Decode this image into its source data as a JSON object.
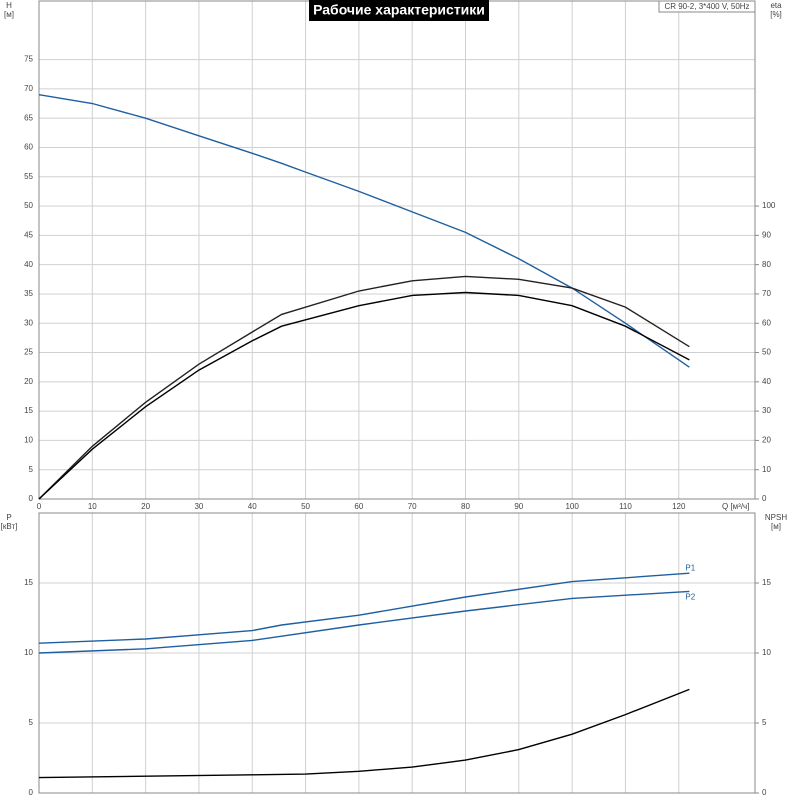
{
  "chart_data": [
    {
      "type": "line",
      "title": "Рабочие характеристики",
      "model": "CR 90-2, 3*400 V, 50Hz",
      "y_label": "H",
      "y_unit": "[м]",
      "y2_label": "eta",
      "y2_unit": "[%]",
      "x_label": "Q [м³/ч]",
      "xlim": [
        0,
        134.3
      ],
      "xticks": [
        0,
        10,
        20,
        30,
        40,
        50,
        60,
        70,
        80,
        90,
        100,
        110,
        120
      ],
      "ylim": [
        0,
        85
      ],
      "yticks": [
        0,
        5,
        10,
        15,
        20,
        25,
        30,
        35,
        40,
        45,
        50,
        55,
        60,
        65,
        70,
        75
      ],
      "y2lim": [
        0,
        170
      ],
      "y2ticks": [
        0,
        10,
        20,
        30,
        40,
        50,
        60,
        70,
        80,
        90,
        100
      ],
      "grid": true,
      "series": [
        {
          "color": "#1f5fa0",
          "x": [
            0,
            10,
            20,
            30,
            40,
            45.5,
            50,
            60,
            70,
            80,
            90,
            100,
            110,
            122
          ],
          "values": [
            69,
            67.5,
            65,
            62,
            59,
            57.3,
            55.8,
            52.5,
            49,
            45.5,
            41,
            36,
            30,
            22.5
          ]
        },
        {
          "color": "#222222",
          "axis": "y2",
          "x": [
            0,
            10,
            20,
            30,
            40,
            45.5,
            60,
            70,
            80,
            90,
            100,
            110,
            122
          ],
          "values": [
            0,
            18,
            33,
            46,
            57,
            63,
            71,
            74.5,
            76,
            75,
            72,
            65.5,
            52
          ]
        },
        {
          "color": "#000000",
          "axis": "y2",
          "x": [
            0,
            10,
            20,
            30,
            40,
            45.5,
            60,
            70,
            80,
            90,
            100,
            110,
            122
          ],
          "values": [
            0,
            17,
            31.5,
            44,
            54,
            59,
            66,
            69.5,
            70.5,
            69.5,
            66,
            59,
            47.5
          ]
        }
      ]
    },
    {
      "type": "line",
      "y_label": "P",
      "y_unit": "[кВт]",
      "y2_label": "NPSH",
      "y2_unit": "[м]",
      "xlim": [
        0,
        134.3
      ],
      "xticks": [
        0,
        10,
        20,
        30,
        40,
        50,
        60,
        70,
        80,
        90,
        100,
        110,
        120
      ],
      "xtick_labels": false,
      "ylim": [
        0,
        20
      ],
      "yticks": [
        0,
        5,
        10,
        15
      ],
      "y2lim": [
        0,
        20
      ],
      "y2ticks": [
        0,
        5,
        10,
        15
      ],
      "grid": true,
      "series": [
        {
          "name": "P1",
          "color": "#1f5fa0",
          "x": [
            0,
            20,
            40,
            45.5,
            60,
            80,
            100,
            122
          ],
          "values": [
            10.7,
            11,
            11.6,
            12,
            12.7,
            14,
            15.1,
            15.7
          ]
        },
        {
          "name": "P2",
          "color": "#1f5fa0",
          "x": [
            0,
            20,
            40,
            45.5,
            60,
            80,
            100,
            122
          ],
          "values": [
            10,
            10.3,
            10.9,
            11.2,
            12,
            13,
            13.9,
            14.4
          ]
        },
        {
          "color": "#000000",
          "axis": "y2",
          "x": [
            0,
            20,
            40,
            50,
            60,
            70,
            80,
            90,
            100,
            110,
            122
          ],
          "values": [
            1.1,
            1.2,
            1.3,
            1.35,
            1.55,
            1.85,
            2.35,
            3.1,
            4.2,
            5.6,
            7.4
          ]
        }
      ]
    }
  ]
}
